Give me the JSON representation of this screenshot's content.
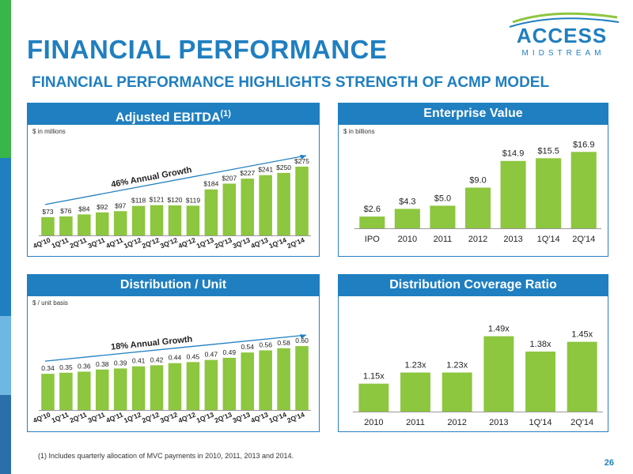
{
  "title": "FINANCIAL PERFORMANCE",
  "subtitle": "FINANCIAL PERFORMANCE HIGHLIGHTS STRENGTH OF ACMP MODEL",
  "logo": {
    "name": "ACCESS",
    "tagline": "MIDSTREAM",
    "colors": [
      "#1f7fc0",
      "#8dc63f"
    ]
  },
  "colors": {
    "accent": "#1f7fc0",
    "bar": "#8dc63f",
    "stripe": [
      "#39b54a",
      "#1f7fc0",
      "#6fb7e3",
      "#2b6faa"
    ]
  },
  "footnote": "(1) Includes quarterly allocation of MVC payments in 2010, 2011, 2013 and 2014.",
  "page_number": "26",
  "panels": {
    "ebitda": {
      "title": "Adjusted EBITDA",
      "title_sup": "(1)",
      "unit": "$ in millions",
      "trend": "46% Annual Growth"
    },
    "ev": {
      "title": "Enterprise Value",
      "unit": "$ in billions"
    },
    "dist": {
      "title": "Distribution / Unit",
      "unit": "$ / unit basis",
      "trend": "18% Annual Growth"
    },
    "coverage": {
      "title": "Distribution Coverage Ratio"
    }
  },
  "chart_data": [
    {
      "id": "ebitda",
      "type": "bar",
      "title": "Adjusted EBITDA(1)",
      "ylabel": "$ in millions",
      "categories": [
        "4Q'10",
        "1Q'11",
        "2Q'11",
        "3Q'11",
        "4Q'11",
        "1Q'12",
        "2Q'12",
        "3Q'12",
        "4Q'12",
        "1Q'13",
        "2Q'13",
        "3Q'13",
        "4Q'13",
        "1Q'14",
        "2Q'14"
      ],
      "values": [
        73,
        76,
        84,
        92,
        97,
        118,
        121,
        120,
        119,
        184,
        207,
        227,
        241,
        250,
        275
      ],
      "labels": [
        "$73",
        "$76",
        "$84",
        "$92",
        "$97",
        "$118",
        "$121",
        "$120",
        "$119",
        "$184",
        "$207",
        "$227",
        "$241",
        "$250",
        "$275"
      ],
      "ylim": [
        0,
        300
      ],
      "annotation": "46% Annual Growth",
      "grid": false
    },
    {
      "id": "ev",
      "type": "bar",
      "title": "Enterprise Value",
      "ylabel": "$ in billions",
      "categories": [
        "IPO",
        "2010",
        "2011",
        "2012",
        "2013",
        "1Q'14",
        "2Q'14"
      ],
      "values": [
        2.6,
        4.3,
        5.0,
        9.0,
        14.9,
        15.5,
        16.9
      ],
      "labels": [
        "$2.6",
        "$4.3",
        "$5.0",
        "$9.0",
        "$14.9",
        "$15.5",
        "$16.9"
      ],
      "ylim": [
        0,
        18
      ],
      "grid": false
    },
    {
      "id": "dist",
      "type": "bar",
      "title": "Distribution / Unit",
      "ylabel": "$ / unit basis",
      "categories": [
        "4Q'10",
        "1Q'11",
        "2Q'11",
        "3Q'11",
        "4Q'11",
        "1Q'12",
        "2Q'12",
        "3Q'12",
        "4Q'12",
        "1Q'13",
        "2Q'13",
        "3Q'13",
        "4Q'13",
        "1Q'14",
        "2Q'14"
      ],
      "values": [
        0.34,
        0.35,
        0.36,
        0.38,
        0.39,
        0.41,
        0.42,
        0.44,
        0.45,
        0.47,
        0.49,
        0.54,
        0.56,
        0.58,
        0.6
      ],
      "labels": [
        "0.34",
        "0.35",
        "0.36",
        "0.38",
        "0.39",
        "0.41",
        "0.42",
        "0.44",
        "0.45",
        "0.47",
        "0.49",
        "0.54",
        "0.56",
        "0.58",
        "0.60"
      ],
      "ylim": [
        0,
        0.66
      ],
      "annotation": "18% Annual Growth",
      "grid": false
    },
    {
      "id": "coverage",
      "type": "bar",
      "title": "Distribution Coverage Ratio",
      "categories": [
        "2010",
        "2011",
        "2012",
        "2013",
        "1Q'14",
        "2Q'14"
      ],
      "values": [
        1.15,
        1.23,
        1.23,
        1.49,
        1.38,
        1.45
      ],
      "labels": [
        "1.15x",
        "1.23x",
        "1.23x",
        "1.49x",
        "1.38x",
        "1.45x"
      ],
      "ylim": [
        0.95,
        1.55
      ],
      "grid": false
    }
  ]
}
